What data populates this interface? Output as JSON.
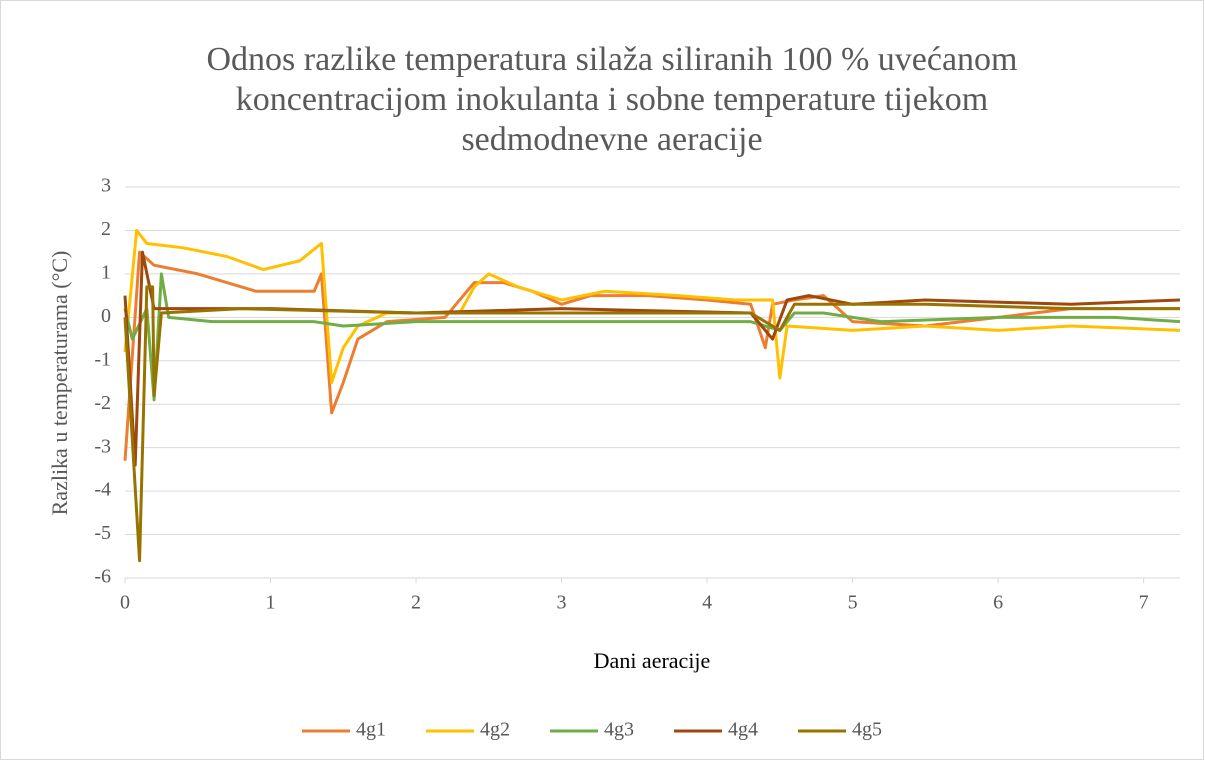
{
  "chart_data": {
    "type": "line",
    "title": [
      "Odnos razlike temperatura silaža siliranih 100 % uvećanom",
      "koncentracijom inokulanta i sobne temperature tijekom",
      "sedmodnevne aeracije"
    ],
    "xlabel": "Dani aeracije",
    "ylabel": "Razlika u temperaturama (°C)",
    "xlim": [
      0,
      7.25
    ],
    "xticks": [
      0,
      1,
      2,
      3,
      4,
      5,
      6,
      7
    ],
    "ylim": [
      -6,
      3
    ],
    "yticks": [
      -6,
      -5,
      -4,
      -3,
      -2,
      -1,
      0,
      1,
      2,
      3
    ],
    "grid": true,
    "legend": "bottom",
    "series": [
      {
        "name": "4g1",
        "color": "#ed7d31",
        "x": [
          0,
          0.1,
          0.2,
          0.5,
          0.9,
          1.3,
          1.35,
          1.42,
          1.5,
          1.6,
          1.8,
          2.2,
          2.4,
          2.6,
          2.8,
          3.0,
          3.2,
          3.6,
          4.0,
          4.3,
          4.4,
          4.45,
          4.6,
          4.8,
          5.0,
          5.5,
          6.0,
          6.5,
          7.25
        ],
        "values": [
          -3.3,
          1.5,
          1.2,
          1.0,
          0.6,
          0.6,
          1.0,
          -2.2,
          -1.5,
          -0.5,
          -0.1,
          0,
          0.8,
          0.8,
          0.6,
          0.3,
          0.5,
          0.5,
          0.4,
          0.3,
          -0.7,
          0.3,
          0.4,
          0.5,
          -0.1,
          -0.2,
          0,
          0.2,
          0.2
        ]
      },
      {
        "name": "4g2",
        "color": "#ffc000",
        "x": [
          0,
          0.08,
          0.15,
          0.4,
          0.7,
          0.95,
          1.2,
          1.35,
          1.42,
          1.5,
          1.6,
          1.8,
          2.3,
          2.4,
          2.5,
          2.7,
          3.0,
          3.3,
          3.8,
          4.2,
          4.45,
          4.5,
          4.55,
          5.0,
          5.5,
          6.0,
          6.5,
          7.25
        ],
        "values": [
          -0.8,
          2.0,
          1.7,
          1.6,
          1.4,
          1.1,
          1.3,
          1.7,
          -1.5,
          -0.7,
          -0.2,
          0.1,
          0.1,
          0.7,
          1.0,
          0.7,
          0.4,
          0.6,
          0.5,
          0.4,
          0.4,
          -1.4,
          -0.2,
          -0.3,
          -0.2,
          -0.3,
          -0.2,
          -0.3
        ]
      },
      {
        "name": "4g3",
        "color": "#70ad47",
        "x": [
          0,
          0.05,
          0.15,
          0.2,
          0.25,
          0.3,
          0.6,
          1.3,
          1.5,
          2.0,
          3.0,
          4.3,
          4.5,
          4.6,
          4.8,
          5.2,
          6.0,
          6.8,
          7.25
        ],
        "values": [
          0.2,
          -0.5,
          0.2,
          -1.9,
          1.0,
          0,
          -0.1,
          -0.1,
          -0.2,
          -0.1,
          -0.1,
          -0.1,
          -0.3,
          0.1,
          0.1,
          -0.1,
          0,
          0,
          -0.1
        ]
      },
      {
        "name": "4g4",
        "color": "#9e480e",
        "x": [
          0,
          0.07,
          0.12,
          0.2,
          1.0,
          2.0,
          3.0,
          4.3,
          4.45,
          4.55,
          4.7,
          5.0,
          5.5,
          6.5,
          7.25
        ],
        "values": [
          0.5,
          -3.4,
          1.5,
          0.2,
          0.2,
          0.1,
          0.2,
          0.1,
          -0.5,
          0.4,
          0.5,
          0.3,
          0.4,
          0.3,
          0.4
        ]
      },
      {
        "name": "4g5",
        "color": "#997300",
        "x": [
          0,
          0.1,
          0.15,
          0.19,
          0.2,
          0.25,
          0.8,
          2.0,
          3.0,
          4.3,
          4.5,
          4.6,
          5.5,
          6.5,
          7.25
        ],
        "values": [
          0,
          -5.6,
          0.7,
          0.7,
          -1.8,
          0.1,
          0.2,
          0.1,
          0.1,
          0.1,
          -0.3,
          0.3,
          0.3,
          0.2,
          0.2
        ]
      }
    ]
  }
}
